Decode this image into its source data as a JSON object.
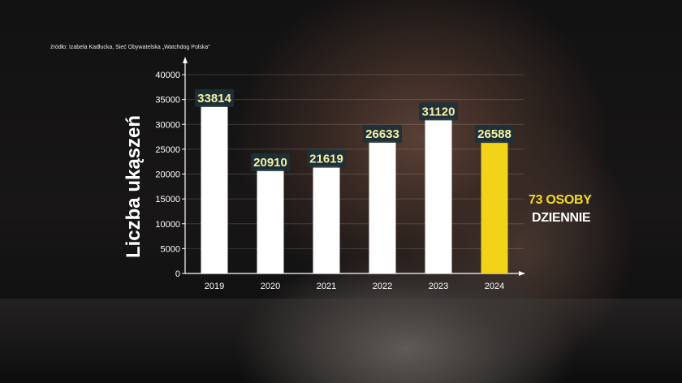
{
  "source": "źródło: Izabela Kadłucka, Sieć Obywatelska „Watchdog Polska\"",
  "note_line1": "73 OSOBY",
  "note_line2": "DZIENNIE",
  "colors": {
    "bar_default": "#ffffff",
    "bar_highlight": "#f3d21a",
    "value_label_bg": "#1d3138",
    "value_label_text": "#f6f2a8"
  },
  "chart_data": {
    "type": "bar",
    "categories": [
      "2019",
      "2020",
      "2021",
      "2022",
      "2023",
      "2024"
    ],
    "values": [
      33814,
      20910,
      21619,
      26633,
      31120,
      26588
    ],
    "highlight_index": 5,
    "ylabel": "Liczba ukąszeń",
    "xlabel": "",
    "ylim": [
      0,
      40000
    ],
    "yticks": [
      0,
      5000,
      10000,
      15000,
      20000,
      25000,
      30000,
      35000,
      40000
    ],
    "grid": true
  }
}
